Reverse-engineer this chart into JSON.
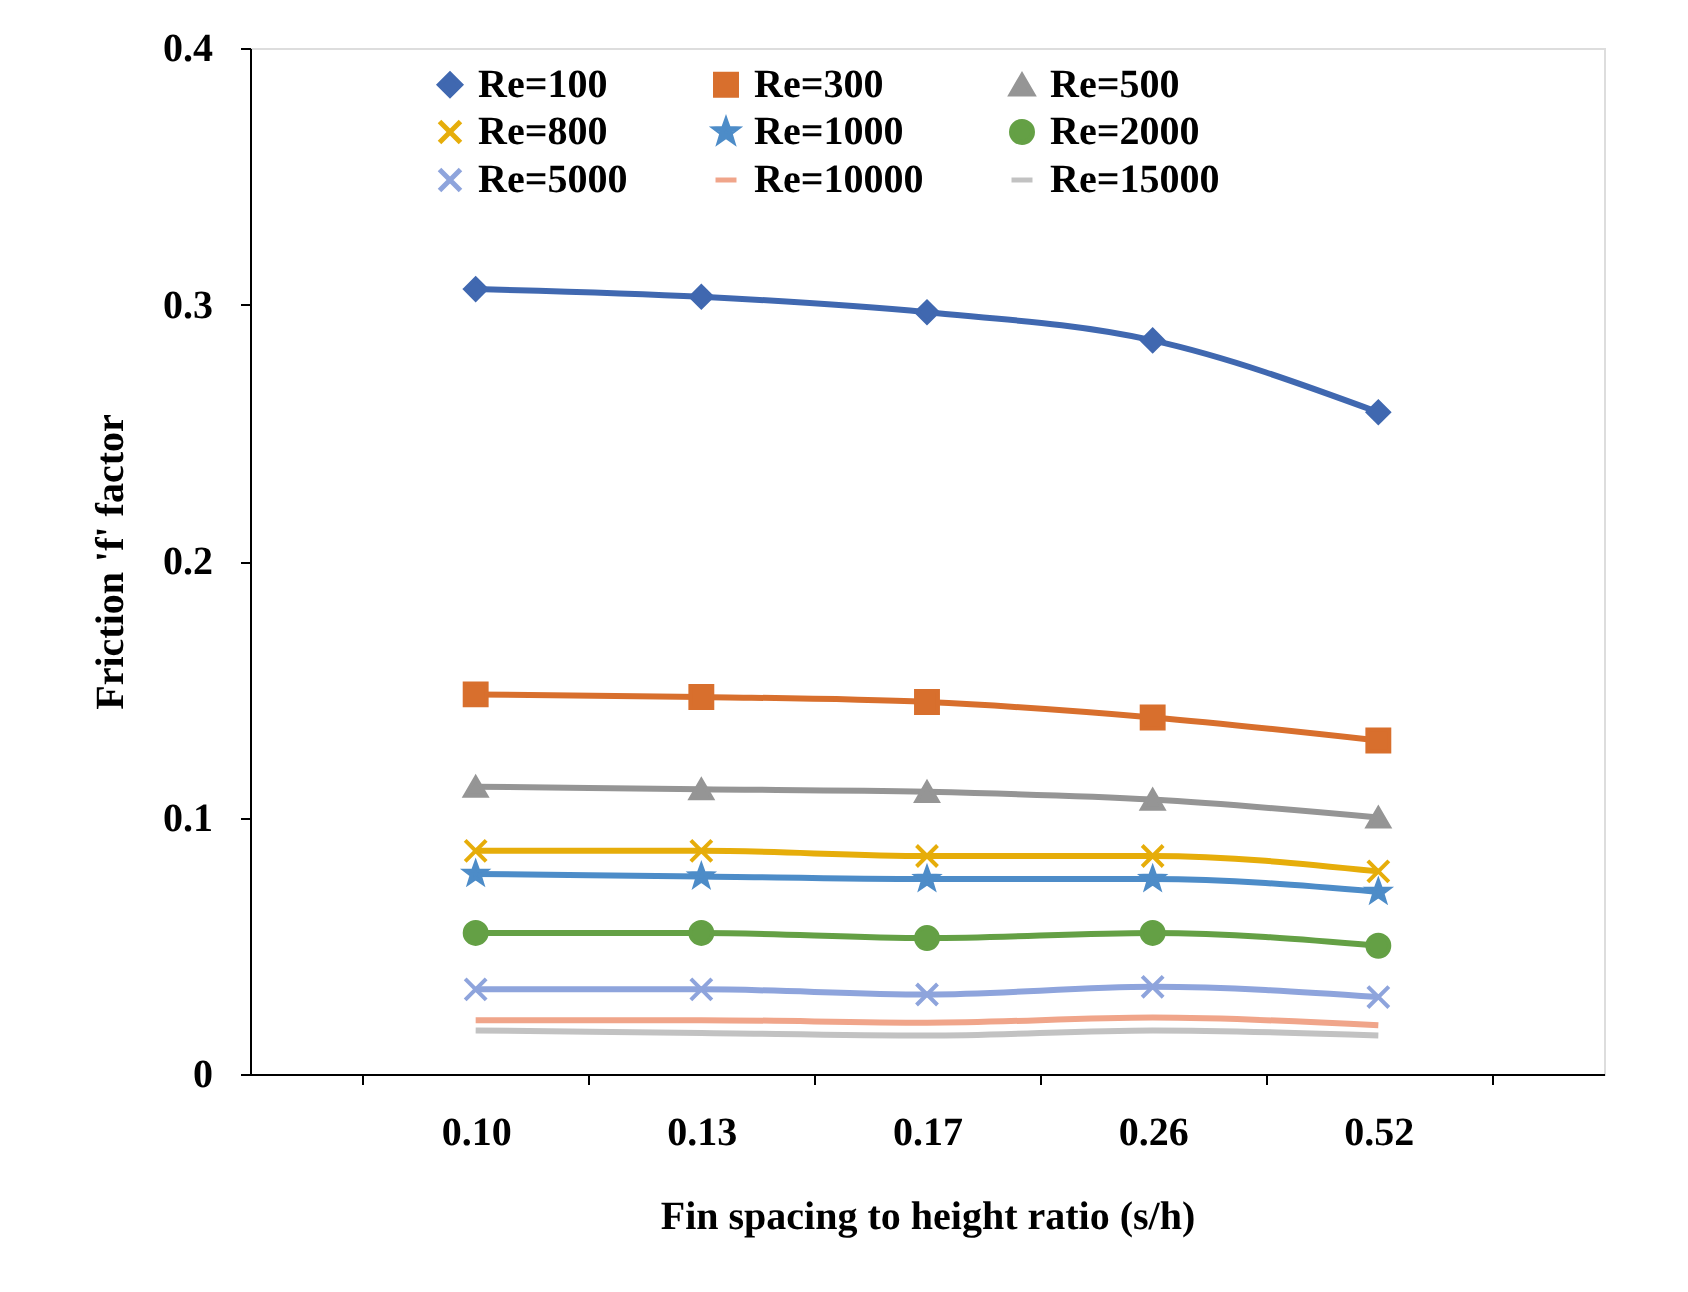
{
  "chart_data": {
    "type": "line",
    "xlabel": "Fin spacing to height ratio (s/h)",
    "ylabel": "Friction 'f' factor",
    "categories": [
      "0.10",
      "0.13",
      "0.17",
      "0.26",
      "0.52"
    ],
    "ylim": [
      0,
      0.4
    ],
    "yticks": [
      {
        "value": 0,
        "label": "0"
      },
      0.1,
      0.2,
      0.3,
      0.4
    ],
    "grid": false,
    "legend": "top",
    "series": [
      {
        "name": "Re=100",
        "color": "#4068b0",
        "marker": "diamond",
        "values": [
          0.306,
          0.303,
          0.297,
          0.286,
          0.258
        ]
      },
      {
        "name": "Re=300",
        "color": "#d86f2d",
        "marker": "square",
        "values": [
          0.148,
          0.147,
          0.145,
          0.139,
          0.13
        ]
      },
      {
        "name": "Re=500",
        "color": "#959595",
        "marker": "triangle",
        "values": [
          0.112,
          0.111,
          0.11,
          0.107,
          0.1
        ]
      },
      {
        "name": "Re=800",
        "color": "#e6ad0a",
        "marker": "cross",
        "values": [
          0.087,
          0.087,
          0.085,
          0.085,
          0.079
        ]
      },
      {
        "name": "Re=1000",
        "color": "#4d8cc8",
        "marker": "star",
        "values": [
          0.078,
          0.077,
          0.076,
          0.076,
          0.071
        ]
      },
      {
        "name": "Re=2000",
        "color": "#64a045",
        "marker": "circle",
        "values": [
          0.055,
          0.055,
          0.053,
          0.055,
          0.05
        ]
      },
      {
        "name": "Re=5000",
        "color": "#8ea4dc",
        "marker": "cross",
        "values": [
          0.033,
          0.033,
          0.031,
          0.034,
          0.03
        ]
      },
      {
        "name": "Re=10000",
        "color": "#f0a58a",
        "marker": "none",
        "values": [
          0.021,
          0.021,
          0.02,
          0.022,
          0.019
        ]
      },
      {
        "name": "Re=15000",
        "color": "#c2c2c2",
        "marker": "none",
        "values": [
          0.017,
          0.016,
          0.015,
          0.017,
          0.015
        ]
      }
    ]
  }
}
